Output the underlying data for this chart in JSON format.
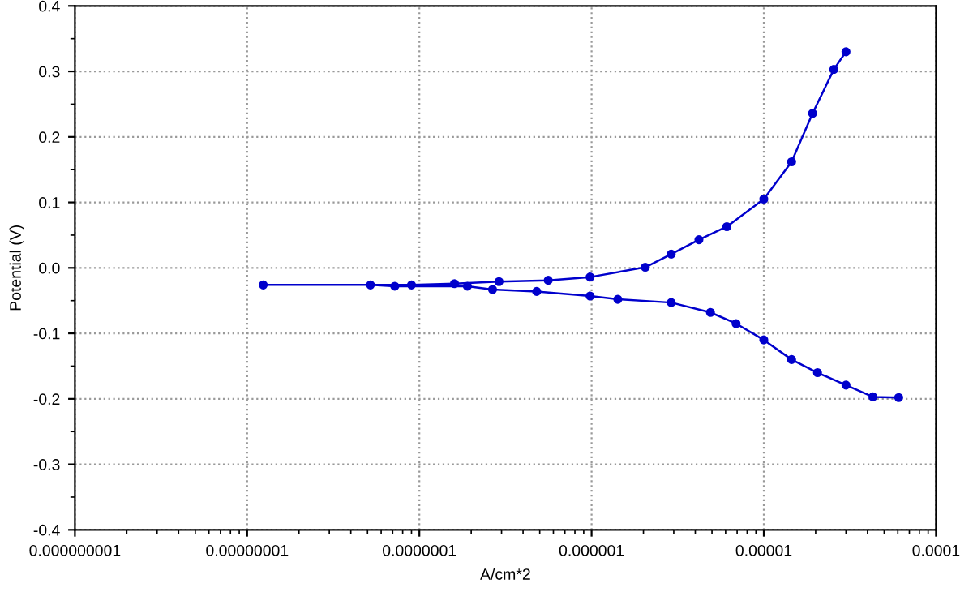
{
  "chart_data": {
    "type": "line",
    "xlabel": "A/cm*2",
    "ylabel": "Potential (V)",
    "log": "x",
    "grid": true,
    "marker": "circle",
    "line_style": "solid",
    "x": [
      6.07e-05,
      4.3e-05,
      3e-05,
      2.05e-05,
      1.45e-05,
      1e-05,
      6.9e-06,
      4.9e-06,
      2.9e-06,
      1.42e-06,
      9.8e-07,
      4.8e-07,
      2.66e-07,
      1.9e-07,
      7.2e-08,
      5.2e-08,
      1.24e-08,
      9e-08,
      1.6e-07,
      2.9e-07,
      5.6e-07,
      9.8e-07,
      2.05e-06,
      2.9e-06,
      4.2e-06,
      6.1e-06,
      1e-05,
      1.45e-05,
      1.92e-05,
      2.55e-05,
      3e-05
    ],
    "series": [
      {
        "color": "#0000cc",
        "values": [
          -0.198,
          -0.197,
          -0.179,
          -0.16,
          -0.14,
          -0.11,
          -0.085,
          -0.068,
          -0.053,
          -0.048,
          -0.043,
          -0.036,
          -0.033,
          -0.028,
          -0.028,
          -0.026,
          -0.026,
          -0.026,
          -0.024,
          -0.021,
          -0.019,
          -0.014,
          0.001,
          0.021,
          0.043,
          0.063,
          0.105,
          0.162,
          0.236,
          0.303,
          0.33
        ]
      }
    ],
    "xlim": [
      1e-09,
      0.0001
    ],
    "xticks": [
      {
        "value": 1e-09,
        "label": "0.000000001"
      },
      {
        "value": 1e-08,
        "label": "0.00000001"
      },
      {
        "value": 1e-07,
        "label": "0.0000001"
      },
      {
        "value": 1e-06,
        "label": "0.000001"
      },
      {
        "value": 1e-05,
        "label": "0.00001"
      },
      {
        "value": 0.0001,
        "label": "0.0001"
      }
    ],
    "ylim": [
      -0.4,
      0.4
    ],
    "yticks": [
      -0.4,
      -0.3,
      -0.2,
      -0.1,
      {
        "value": 0,
        "label": "0.0"
      },
      0.1,
      0.2,
      0.3,
      0.4
    ]
  }
}
